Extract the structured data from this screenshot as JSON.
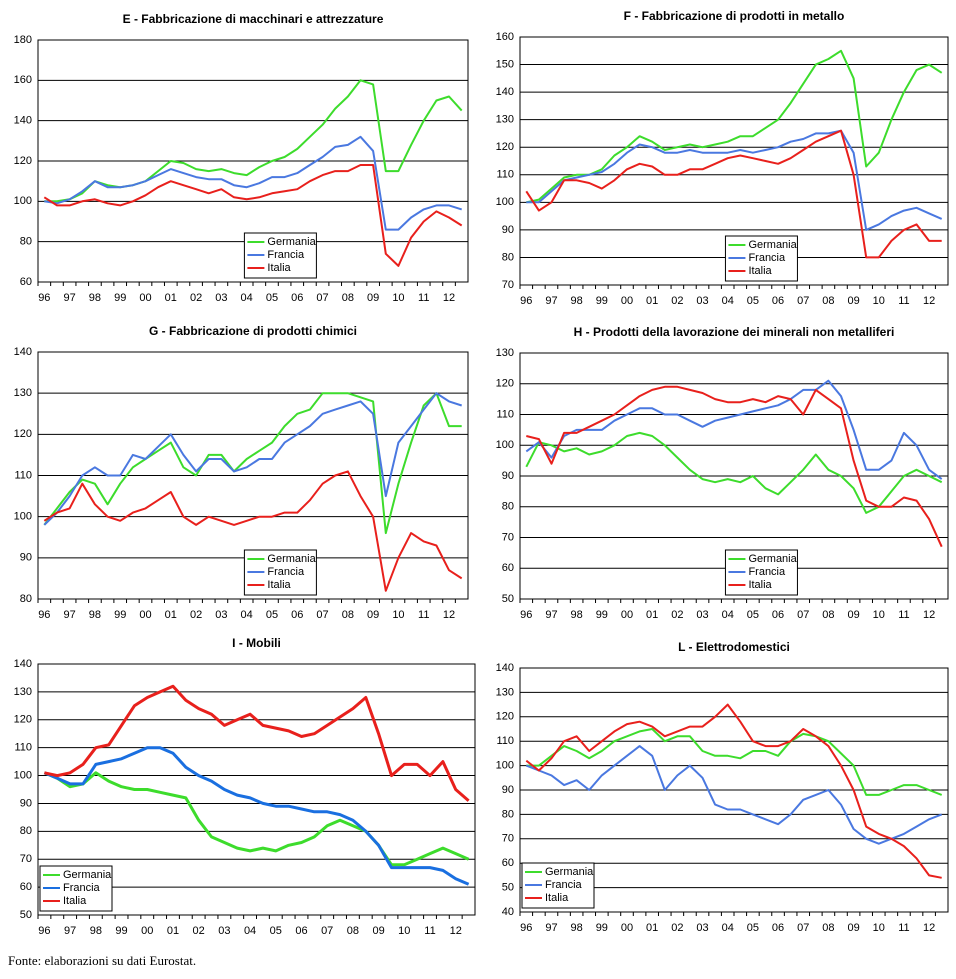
{
  "chart_data": [
    {
      "type": "line",
      "title": "E - Fabbricazione di macchinari e attrezzature",
      "categories": [
        "96",
        null,
        "97",
        null,
        "98",
        null,
        "99",
        null,
        "00",
        null,
        "01",
        null,
        "02",
        null,
        "03",
        null,
        "04",
        null,
        "05",
        null,
        "06",
        null,
        "07",
        null,
        "08",
        null,
        "09",
        null,
        "10",
        null,
        "11",
        null,
        "12",
        null
      ],
      "series": [
        {
          "name": "Germania",
          "color": "#3ddc2c",
          "values": [
            100,
            100,
            101,
            104,
            110,
            108,
            107,
            108,
            110,
            115,
            120,
            119,
            116,
            115,
            116,
            114,
            113,
            117,
            120,
            122,
            126,
            132,
            138,
            146,
            152,
            160,
            158,
            115,
            115,
            128,
            140,
            150,
            152,
            145
          ]
        },
        {
          "name": "Francia",
          "color": "#4a78e0",
          "values": [
            100,
            99,
            101,
            105,
            110,
            107,
            107,
            108,
            110,
            113,
            116,
            114,
            112,
            111,
            111,
            108,
            107,
            109,
            112,
            112,
            114,
            118,
            122,
            127,
            128,
            132,
            125,
            86,
            86,
            92,
            96,
            98,
            98,
            96
          ]
        },
        {
          "name": "Italia",
          "color": "#e8201c",
          "values": [
            102,
            98,
            98,
            100,
            101,
            99,
            98,
            100,
            103,
            107,
            110,
            108,
            106,
            104,
            106,
            102,
            101,
            102,
            104,
            105,
            106,
            110,
            113,
            115,
            115,
            118,
            118,
            74,
            68,
            82,
            90,
            95,
            92,
            88
          ]
        }
      ],
      "ylim": [
        60,
        180
      ],
      "yticks": [
        60,
        80,
        100,
        120,
        140,
        160,
        180
      ],
      "grid": true,
      "legend": "lower-center"
    },
    {
      "type": "line",
      "title": "F - Fabbricazione di prodotti in metallo",
      "categories": [
        "96",
        null,
        "97",
        null,
        "98",
        null,
        "99",
        null,
        "00",
        null,
        "01",
        null,
        "02",
        null,
        "03",
        null,
        "04",
        null,
        "05",
        null,
        "06",
        null,
        "07",
        null,
        "08",
        null,
        "09",
        null,
        "10",
        null,
        "11",
        null,
        "12",
        null
      ],
      "series": [
        {
          "name": "Germania",
          "color": "#3ddc2c",
          "values": [
            100,
            101,
            105,
            109,
            110,
            110,
            112,
            117,
            120,
            124,
            122,
            119,
            120,
            121,
            120,
            121,
            122,
            124,
            124,
            127,
            130,
            136,
            143,
            150,
            152,
            155,
            145,
            113,
            118,
            130,
            140,
            148,
            150,
            147
          ]
        },
        {
          "name": "Francia",
          "color": "#4a78e0",
          "values": [
            100,
            100,
            104,
            108,
            109,
            110,
            111,
            114,
            118,
            121,
            120,
            118,
            118,
            119,
            118,
            118,
            118,
            119,
            118,
            119,
            120,
            122,
            123,
            125,
            125,
            126,
            118,
            90,
            92,
            95,
            97,
            98,
            96,
            94
          ]
        },
        {
          "name": "Italia",
          "color": "#e8201c",
          "values": [
            104,
            97,
            100,
            108,
            108,
            107,
            105,
            108,
            112,
            114,
            113,
            110,
            110,
            112,
            112,
            114,
            116,
            117,
            116,
            115,
            114,
            116,
            119,
            122,
            124,
            126,
            110,
            80,
            80,
            86,
            90,
            92,
            86,
            86
          ]
        }
      ],
      "ylim": [
        70,
        160
      ],
      "yticks": [
        70,
        80,
        90,
        100,
        110,
        120,
        130,
        140,
        150,
        160
      ],
      "grid": true,
      "legend": "lower-center"
    },
    {
      "type": "line",
      "title": "G - Fabbricazione di prodotti chimici",
      "categories": [
        "96",
        null,
        "97",
        null,
        "98",
        null,
        "99",
        null,
        "00",
        null,
        "01",
        null,
        "02",
        null,
        "03",
        null,
        "04",
        null,
        "05",
        null,
        "06",
        null,
        "07",
        null,
        "08",
        null,
        "09",
        null,
        "10",
        null,
        "11",
        null,
        "12",
        null
      ],
      "series": [
        {
          "name": "Germania",
          "color": "#3ddc2c",
          "values": [
            98,
            102,
            106,
            109,
            108,
            103,
            108,
            112,
            114,
            116,
            118,
            112,
            110,
            115,
            115,
            111,
            114,
            116,
            118,
            122,
            125,
            126,
            130,
            130,
            130,
            129,
            128,
            96,
            108,
            118,
            127,
            130,
            122,
            122
          ]
        },
        {
          "name": "Francia",
          "color": "#4a78e0",
          "values": [
            98,
            101,
            105,
            110,
            112,
            110,
            110,
            115,
            114,
            117,
            120,
            115,
            111,
            114,
            114,
            111,
            112,
            114,
            114,
            118,
            120,
            122,
            125,
            126,
            127,
            128,
            125,
            105,
            118,
            122,
            126,
            130,
            128,
            127
          ]
        },
        {
          "name": "Italia",
          "color": "#e8201c",
          "values": [
            99,
            101,
            102,
            108,
            103,
            100,
            99,
            101,
            102,
            104,
            106,
            100,
            98,
            100,
            99,
            98,
            99,
            100,
            100,
            101,
            101,
            104,
            108,
            110,
            111,
            105,
            100,
            82,
            90,
            96,
            94,
            93,
            87,
            85
          ]
        }
      ],
      "ylim": [
        80,
        140
      ],
      "yticks": [
        80,
        90,
        100,
        110,
        120,
        130,
        140
      ],
      "grid": true,
      "legend": "lower-center"
    },
    {
      "type": "line",
      "title": "H - Prodotti della lavorazione dei minerali non metalliferi",
      "categories": [
        "96",
        null,
        "97",
        null,
        "98",
        null,
        "99",
        null,
        "00",
        null,
        "01",
        null,
        "02",
        null,
        "03",
        null,
        "04",
        null,
        "05",
        null,
        "06",
        null,
        "07",
        null,
        "08",
        null,
        "09",
        null,
        "10",
        null,
        "11",
        null,
        "12",
        null
      ],
      "series": [
        {
          "name": "Germania",
          "color": "#3ddc2c",
          "values": [
            93,
            101,
            100,
            98,
            99,
            97,
            98,
            100,
            103,
            104,
            103,
            100,
            96,
            92,
            89,
            88,
            89,
            88,
            90,
            86,
            84,
            88,
            92,
            97,
            92,
            90,
            86,
            78,
            80,
            85,
            90,
            92,
            90,
            88
          ]
        },
        {
          "name": "Francia",
          "color": "#4a78e0",
          "values": [
            98,
            101,
            96,
            103,
            105,
            105,
            105,
            108,
            110,
            112,
            112,
            110,
            110,
            108,
            106,
            108,
            109,
            110,
            111,
            112,
            113,
            115,
            118,
            118,
            121,
            116,
            105,
            92,
            92,
            95,
            104,
            100,
            92,
            89
          ]
        },
        {
          "name": "Italia",
          "color": "#e8201c",
          "values": [
            103,
            102,
            94,
            104,
            104,
            106,
            108,
            110,
            113,
            116,
            118,
            119,
            119,
            118,
            117,
            115,
            114,
            114,
            115,
            114,
            116,
            115,
            110,
            118,
            115,
            112,
            95,
            82,
            80,
            80,
            83,
            82,
            76,
            67
          ]
        }
      ],
      "ylim": [
        50,
        130
      ],
      "yticks": [
        50,
        60,
        70,
        80,
        90,
        100,
        110,
        120,
        130
      ],
      "grid": true,
      "legend": "lower-center"
    },
    {
      "type": "line",
      "title": "I - Mobili",
      "categories": [
        "96",
        null,
        "97",
        null,
        "98",
        null,
        "99",
        null,
        "00",
        null,
        "01",
        null,
        "02",
        null,
        "03",
        null,
        "04",
        null,
        "05",
        null,
        "06",
        null,
        "07",
        null,
        "08",
        null,
        "09",
        null,
        "10",
        null,
        "11",
        null,
        "12",
        null
      ],
      "series": [
        {
          "name": "Germania",
          "color": "#3ddc2c",
          "values": [
            101,
            99,
            96,
            97,
            101,
            98,
            96,
            95,
            95,
            94,
            93,
            92,
            84,
            78,
            76,
            74,
            73,
            74,
            73,
            75,
            76,
            78,
            82,
            84,
            82,
            80,
            75,
            68,
            68,
            70,
            72,
            74,
            72,
            70
          ]
        },
        {
          "name": "Francia",
          "color": "#1a6fe0",
          "values": [
            101,
            99,
            97,
            97,
            104,
            105,
            106,
            108,
            110,
            110,
            108,
            103,
            100,
            98,
            95,
            93,
            92,
            90,
            89,
            89,
            88,
            87,
            87,
            86,
            84,
            80,
            75,
            67,
            67,
            67,
            67,
            66,
            63,
            61
          ]
        },
        {
          "name": "Italia",
          "color": "#e8201c",
          "values": [
            101,
            100,
            101,
            104,
            110,
            111,
            118,
            125,
            128,
            130,
            132,
            127,
            124,
            122,
            118,
            120,
            122,
            118,
            117,
            116,
            114,
            115,
            118,
            121,
            124,
            128,
            115,
            100,
            104,
            104,
            100,
            105,
            95,
            91
          ]
        }
      ],
      "ylim": [
        50,
        140
      ],
      "yticks": [
        50,
        60,
        70,
        80,
        90,
        100,
        110,
        120,
        130,
        140
      ],
      "grid": true,
      "legend": "lower-left"
    },
    {
      "type": "line",
      "title": "L - Elettrodomestici",
      "categories": [
        "96",
        null,
        "97",
        null,
        "98",
        null,
        "99",
        null,
        "00",
        null,
        "01",
        null,
        "02",
        null,
        "03",
        null,
        "04",
        null,
        "05",
        null,
        "06",
        null,
        "07",
        null,
        "08",
        null,
        "09",
        null,
        "10",
        null,
        "11",
        null,
        "12",
        null
      ],
      "series": [
        {
          "name": "Germania",
          "color": "#3ddc2c",
          "values": [
            100,
            100,
            104,
            108,
            106,
            103,
            106,
            110,
            112,
            114,
            115,
            110,
            112,
            112,
            106,
            104,
            104,
            103,
            106,
            106,
            104,
            110,
            113,
            112,
            110,
            105,
            100,
            88,
            88,
            90,
            92,
            92,
            90,
            88
          ]
        },
        {
          "name": "Francia",
          "color": "#4a78e0",
          "values": [
            100,
            98,
            96,
            92,
            94,
            90,
            96,
            100,
            104,
            108,
            104,
            90,
            96,
            100,
            95,
            84,
            82,
            82,
            80,
            78,
            76,
            80,
            86,
            88,
            90,
            84,
            74,
            70,
            68,
            70,
            72,
            75,
            78,
            80
          ]
        },
        {
          "name": "Italia",
          "color": "#e8201c",
          "values": [
            102,
            98,
            103,
            110,
            112,
            106,
            110,
            114,
            117,
            118,
            116,
            112,
            114,
            116,
            116,
            120,
            125,
            118,
            110,
            108,
            108,
            110,
            115,
            112,
            108,
            100,
            90,
            75,
            72,
            70,
            67,
            62,
            55,
            54
          ]
        }
      ],
      "ylim": [
        40,
        140
      ],
      "yticks": [
        40,
        50,
        60,
        70,
        80,
        90,
        100,
        110,
        120,
        130,
        140
      ],
      "grid": true,
      "legend": "lower-left"
    }
  ],
  "source": "Fonte: elaborazioni su dati Eurostat."
}
